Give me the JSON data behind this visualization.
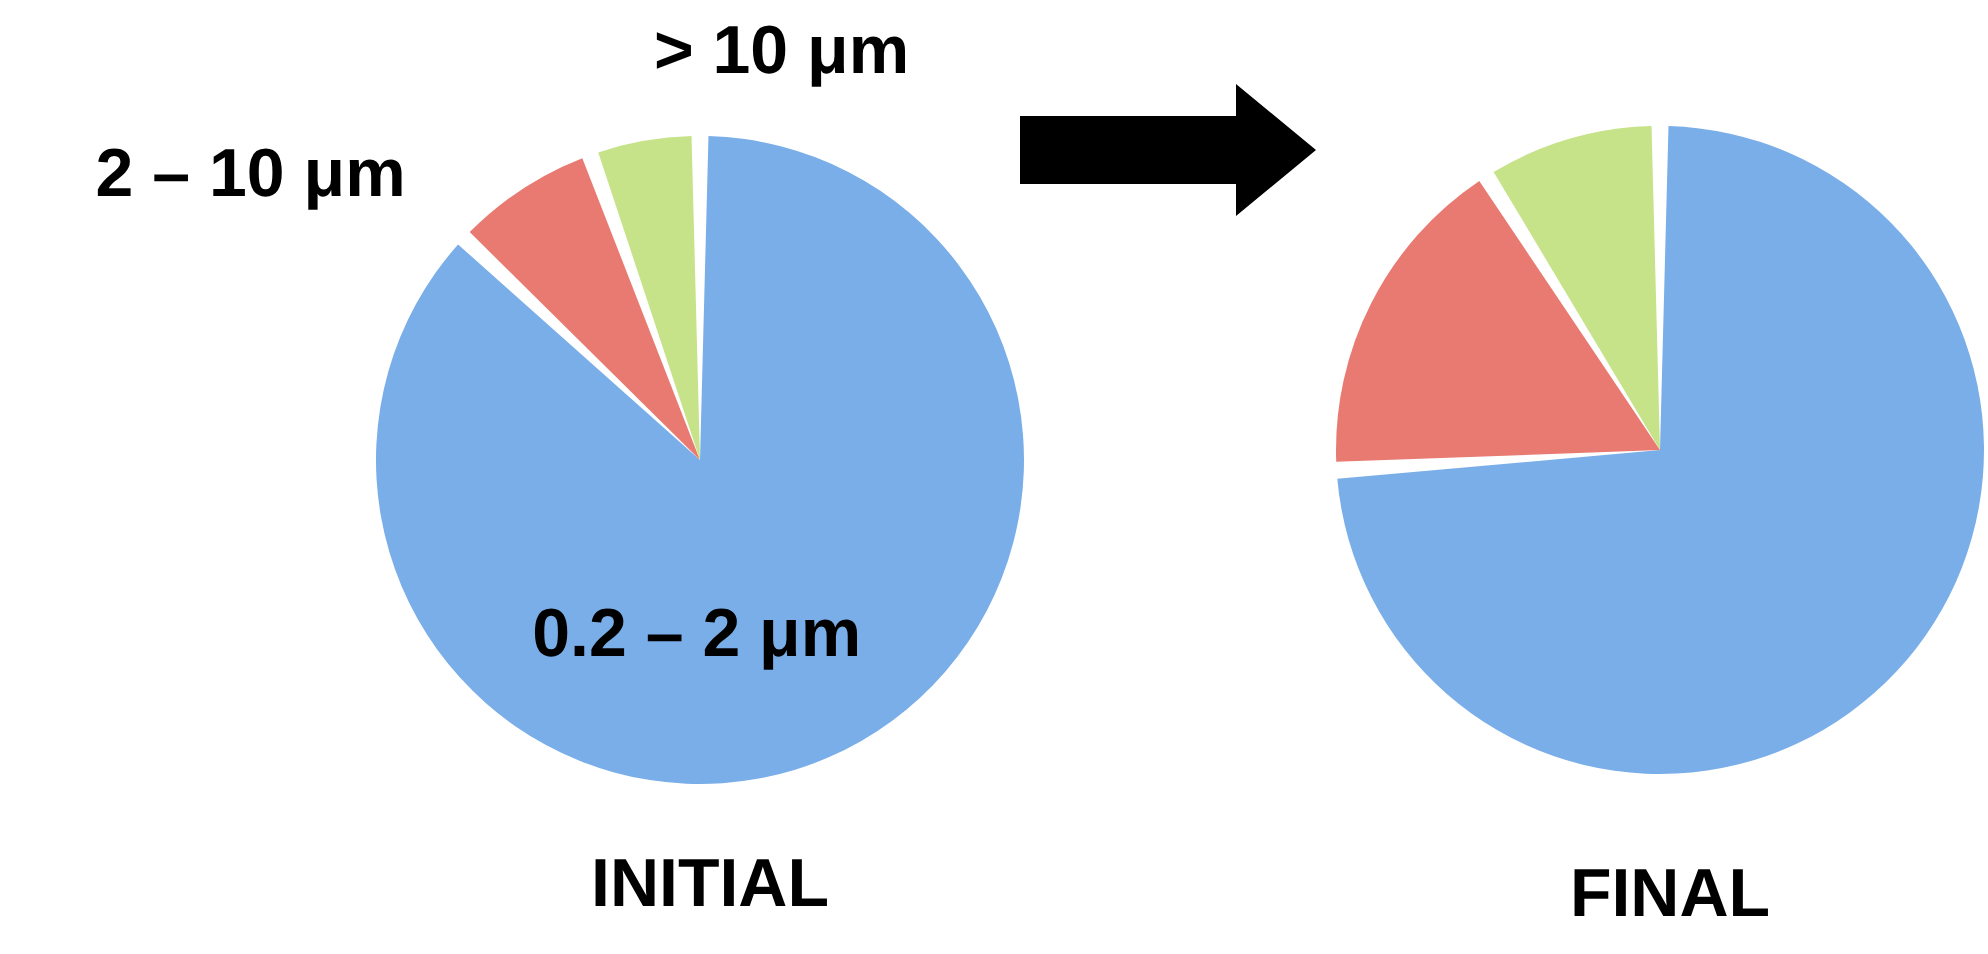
{
  "chart_data": [
    {
      "type": "pie",
      "title": "INITIAL",
      "categories": [
        "0.2 – 2 μm",
        "2 – 10 μm",
        "> 10 μm"
      ],
      "values": [
        87,
        7.5,
        5.5
      ],
      "colors": [
        "#7aaee8",
        "#e87a72",
        "#c6e38a"
      ]
    },
    {
      "type": "pie",
      "title": "FINAL",
      "categories": [
        null,
        null,
        null
      ],
      "values": [
        74,
        17,
        9
      ],
      "colors": [
        "#7aaee8",
        "#e87a72",
        "#c6e38a"
      ]
    }
  ]
}
